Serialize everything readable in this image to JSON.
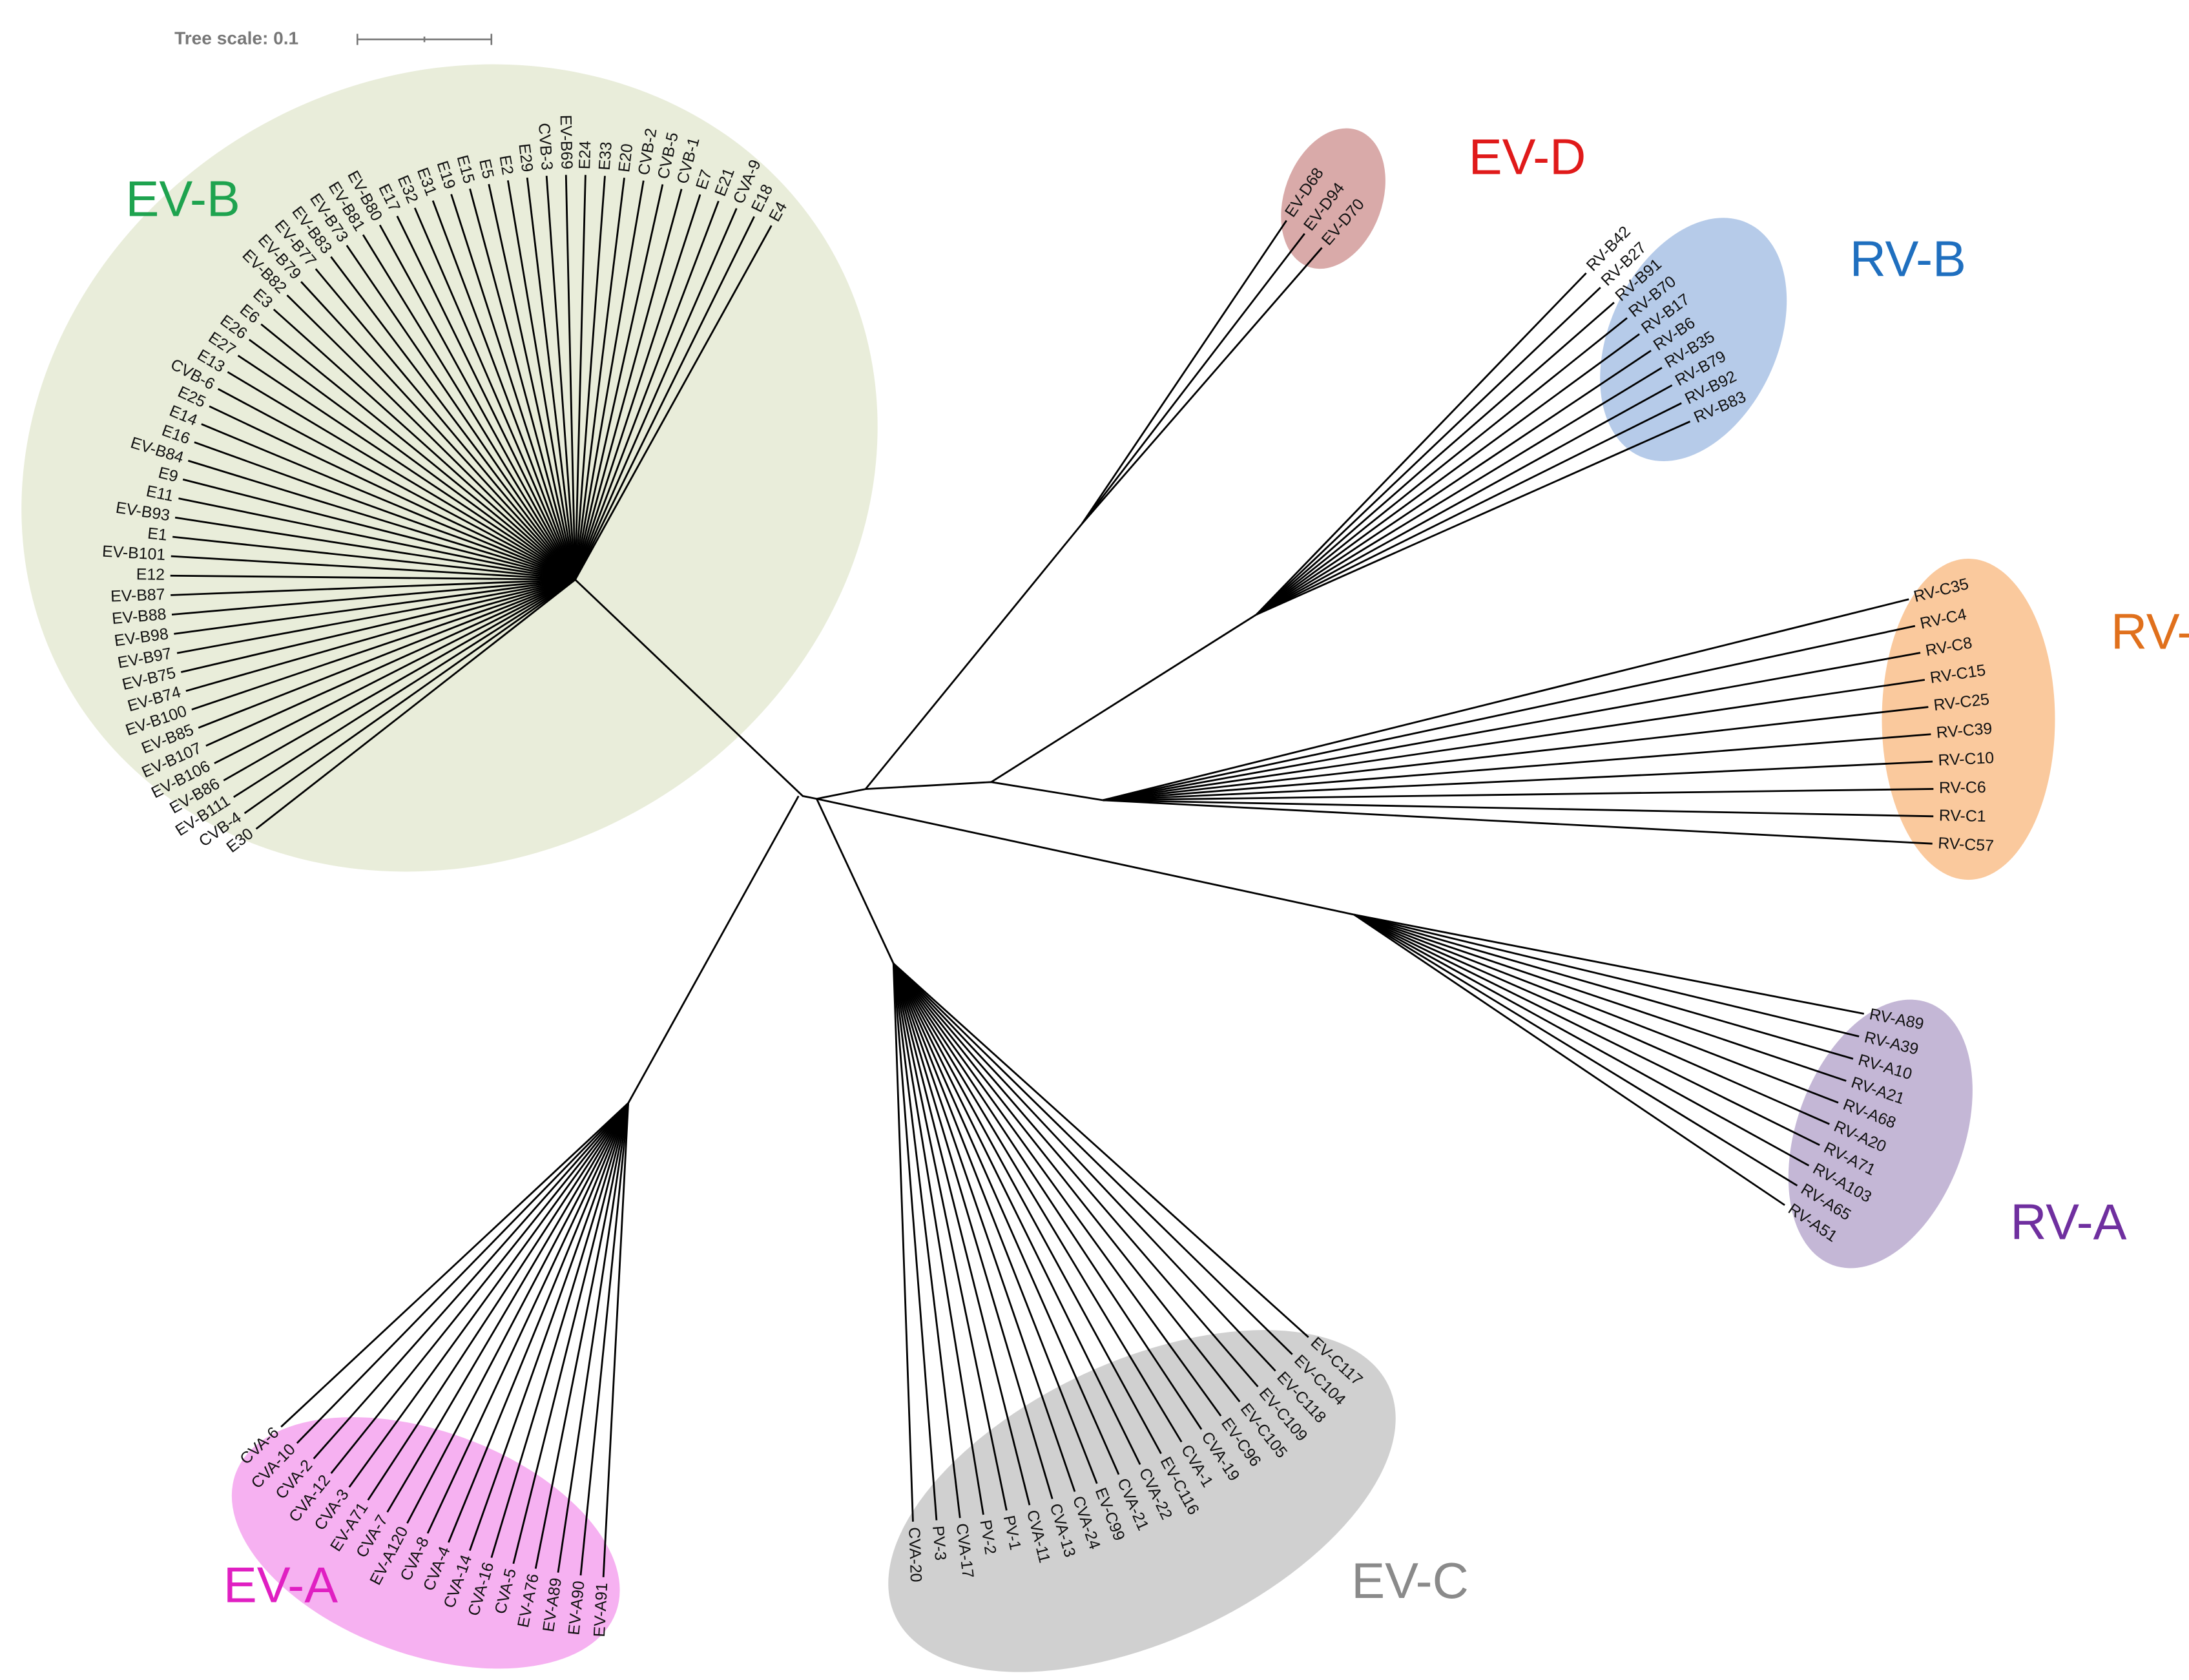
{
  "tree_scale": "Tree scale: 0.1",
  "clades": [
    {
      "name": "EV-B",
      "color": "#1ea34f",
      "leaves": [
        "E4",
        "E18",
        "CVA-9",
        "E21",
        "E7",
        "CVB-1",
        "CVB-5",
        "CVB-2",
        "E20",
        "E33",
        "E24",
        "EV-B69",
        "CVB-3",
        "E29",
        "E2",
        "E5",
        "E15",
        "E19",
        "E31",
        "E32",
        "E17",
        "EV-B80",
        "EV-B81",
        "EV-B73",
        "EV-B83",
        "EV-B77",
        "EV-B79",
        "EV-B82",
        "E3",
        "E6",
        "E26",
        "E27",
        "E13",
        "CVB-6",
        "E25",
        "E14",
        "E16",
        "EV-B84",
        "E9",
        "E11",
        "EV-B93",
        "E1",
        "EV-B101",
        "E12",
        "EV-B87",
        "EV-B88",
        "EV-B98",
        "EV-B97",
        "EV-B75",
        "EV-B74",
        "EV-B100",
        "EV-B85",
        "EV-B107",
        "EV-B106",
        "EV-B86",
        "EV-B111",
        "CVB-4",
        "E30"
      ]
    },
    {
      "name": "EV-D",
      "color": "#e01a1a",
      "leaves": [
        "EV-D68",
        "EV-D94",
        "EV-D70"
      ]
    },
    {
      "name": "RV-B",
      "color": "#1f6fbf",
      "leaves": [
        "RV-B42",
        "RV-B27",
        "RV-B91",
        "RV-B70",
        "RV-B17",
        "RV-B6",
        "RV-B35",
        "RV-B79",
        "RV-B92",
        "RV-B83"
      ]
    },
    {
      "name": "RV-C",
      "color": "#e0701c",
      "leaves": [
        "RV-C35",
        "RV-C4",
        "RV-C8",
        "RV-C15",
        "RV-C25",
        "RV-C39",
        "RV-C10",
        "RV-C6",
        "RV-C1",
        "RV-C57"
      ]
    },
    {
      "name": "RV-A",
      "color": "#6f2f9f",
      "leaves": [
        "RV-A89",
        "RV-A39",
        "RV-A10",
        "RV-A21",
        "RV-A68",
        "RV-A20",
        "RV-A71",
        "RV-A103",
        "RV-A65",
        "RV-A51"
      ]
    },
    {
      "name": "EV-C",
      "color": "#8a8a8a",
      "leaves": [
        "EV-C117",
        "EV-C104",
        "EV-C118",
        "EV-C109",
        "EV-C105",
        "EV-C96",
        "CVA-19",
        "CVA-1",
        "EV-C116",
        "CVA-22",
        "CVA-21",
        "EV-C99",
        "CVA-24",
        "CVA-13",
        "CVA-11",
        "PV-1",
        "PV-2",
        "CVA-17",
        "PV-3",
        "CVA-20"
      ]
    },
    {
      "name": "EV-A",
      "color": "#e01fc2",
      "leaves": [
        "EV-A91",
        "EV-A90",
        "EV-A89",
        "EV-A76",
        "CVA-5",
        "CVA-16",
        "CVA-14",
        "CVA-4",
        "CVA-8",
        "EV-A120",
        "CVA-7",
        "EV-A71",
        "CVA-3",
        "CVA-12",
        "CVA-2",
        "CVA-10",
        "CVA-6"
      ]
    }
  ]
}
